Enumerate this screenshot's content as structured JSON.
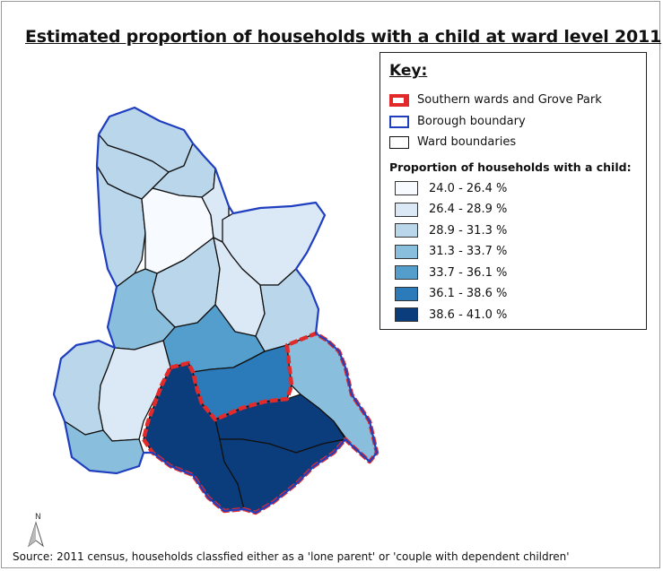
{
  "title": "Estimated proportion of households with a child at ward level 2011",
  "legend": {
    "key_title": "Key:",
    "boundaries": [
      {
        "label": "Southern wards and Grove Park",
        "style": "red-dashed"
      },
      {
        "label": "Borough boundary",
        "style": "blue"
      },
      {
        "label": "Ward boundaries",
        "style": "black"
      }
    ],
    "classes_title": "Proportion of households with a child:",
    "classes": [
      {
        "label": "24.0 - 26.4 %",
        "color": "#f7fbff"
      },
      {
        "label": "26.4 - 28.9 %",
        "color": "#dbe9f6"
      },
      {
        "label": "28.9 - 31.3 %",
        "color": "#bad6eb"
      },
      {
        "label": "31.3 - 33.7 %",
        "color": "#89bedc"
      },
      {
        "label": "33.7 - 36.1 %",
        "color": "#539ecd"
      },
      {
        "label": "36.1 - 38.6 %",
        "color": "#2b7bba"
      },
      {
        "label": "38.6 - 41.0 %",
        "color": "#0b3d7d"
      }
    ]
  },
  "colors": {
    "borough_boundary": "#1f3fbf",
    "southern_wards_outline": "#e32a2a",
    "ward_boundary": "#111111"
  },
  "north_arrow": {
    "label": "N"
  },
  "source": "Source: 2011 census, households classfied either as a 'lone parent' or 'couple with dependent children'"
}
